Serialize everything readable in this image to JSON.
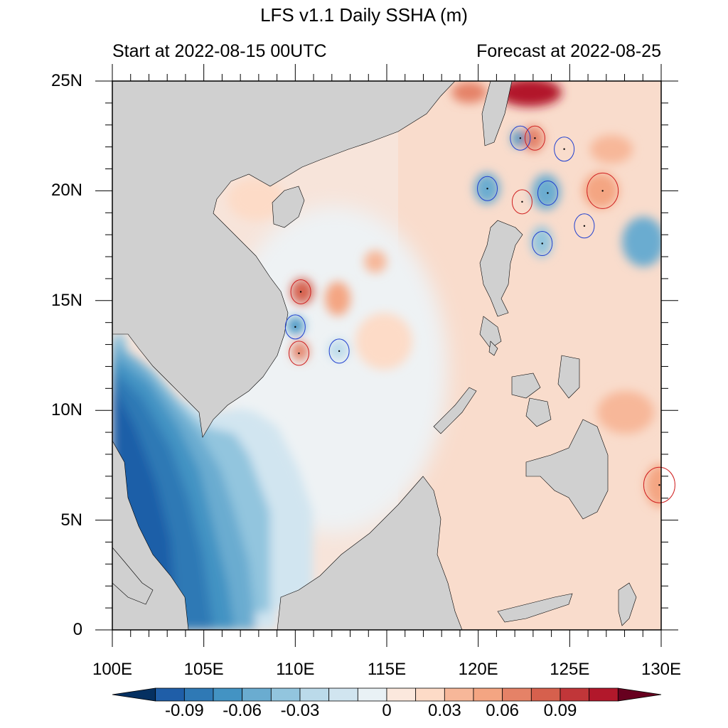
{
  "title": "LFS v1.1 Daily SSHA (m)",
  "start_text": "Start at 2022-08-15 00UTC",
  "forecast_text": "Forecast at 2022-08-25",
  "lat_labels": [
    "25N",
    "20N",
    "15N",
    "10N",
    "5N",
    "0"
  ],
  "lon_labels": [
    "100E",
    "105E",
    "110E",
    "115E",
    "120E",
    "125E",
    "130E"
  ],
  "colorbar": {
    "labels": [
      "-0.09",
      "-0.06",
      "-0.03",
      "0",
      "0.03",
      "0.06",
      "0.09"
    ],
    "colors": [
      "#053061",
      "#1f5ea8",
      "#2f79b5",
      "#4393c3",
      "#6aacd0",
      "#92c5de",
      "#bbdaea",
      "#d1e5f0",
      "#e9f1f5",
      "#fbe8dd",
      "#fddbc7",
      "#f7b799",
      "#f4a582",
      "#e58267",
      "#d6604d",
      "#c13639",
      "#b2182b",
      "#67001f"
    ]
  },
  "land_color": "#d0d0d0",
  "eddies": [
    {
      "type": "cyclonic",
      "lon": 122.3,
      "lat": 22.4
    },
    {
      "type": "anticyclonic",
      "lon": 123.1,
      "lat": 22.4
    },
    {
      "type": "cyclonic",
      "lon": 124.7,
      "lat": 21.9
    },
    {
      "type": "cyclonic",
      "lon": 120.5,
      "lat": 20.1
    },
    {
      "type": "anticyclonic",
      "lon": 122.4,
      "lat": 19.5
    },
    {
      "type": "cyclonic",
      "lon": 123.8,
      "lat": 19.9
    },
    {
      "type": "anticyclonic",
      "lon": 126.8,
      "lat": 20.0
    },
    {
      "type": "cyclonic",
      "lon": 125.8,
      "lat": 18.4
    },
    {
      "type": "cyclonic",
      "lon": 123.5,
      "lat": 17.6
    },
    {
      "type": "anticyclonic",
      "lon": 110.3,
      "lat": 15.4
    },
    {
      "type": "cyclonic",
      "lon": 110.0,
      "lat": 13.8
    },
    {
      "type": "anticyclonic",
      "lon": 110.2,
      "lat": 12.6
    },
    {
      "type": "cyclonic",
      "lon": 112.4,
      "lat": 12.7
    },
    {
      "type": "anticyclonic",
      "lon": 129.9,
      "lat": 6.6
    }
  ]
}
